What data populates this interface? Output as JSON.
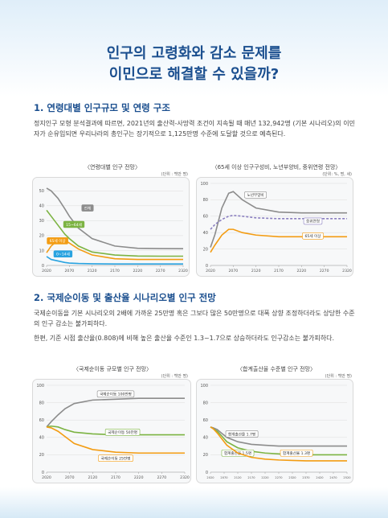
{
  "header": {
    "title_lines": [
      "인구의 고령화와 감소 문제를",
      "이민으로 해결할 수 있을까?"
    ]
  },
  "sections": [
    {
      "heading": "1. 연령대별 인구규모 및 연령 구조",
      "paragraphs": [
        "정지인구 모형 분석결과에 따르면, 2021년의 출산력-사망력 조건이 지속될 때 매년 132,942명 (기본 시나리오)의 이민자가 순유입되면 우리나라의 총인구는 장기적으로 1,125만명 수준에 도달할 것으로 예측된다."
      ]
    },
    {
      "heading": "2. 국제순이동 및 출산율 시나리오별 인구 전망",
      "paragraphs": [
        "국제순이동을 기본 시나리오의 2배에 가까운 25만명 혹은 그보다 많은 50만명으로 대폭 상향 조정하더라도 상당한 수준의 인구 감소는 불가피하다.",
        "한편, 기준 시점 출산율(0.808)에 비해 높은 출산율 수준인 1.3~1.7으로 상승하더라도 인구감소는 불가피하다."
      ]
    }
  ],
  "chart_data": [
    {
      "type": "line",
      "title": "〈연령대별 인구 전망〉",
      "unit": "(단위 : 백만 명)",
      "x": [
        2020,
        2030,
        2045,
        2060,
        2070,
        2090,
        2120,
        2170,
        2220,
        2270,
        2320
      ],
      "xlim": [
        2020,
        2320
      ],
      "xticks": [
        2020,
        2070,
        2120,
        2170,
        2220,
        2270,
        2320
      ],
      "ylim": [
        0,
        55
      ],
      "yticks": [
        0,
        10,
        20,
        30,
        40,
        50
      ],
      "grid": true,
      "series": [
        {
          "name": "전체",
          "color": "#8c8c8c",
          "values": [
            51.8,
            50,
            45,
            38,
            33,
            25,
            18,
            13,
            11.5,
            11.3,
            11.2
          ]
        },
        {
          "name": "15~64세",
          "color": "#7cb342",
          "values": [
            37,
            33,
            27,
            21,
            18,
            13,
            9,
            7,
            6.3,
            6.2,
            6.2
          ]
        },
        {
          "name": "65세 이상",
          "color": "#f39c12",
          "values": [
            8.5,
            13,
            17,
            17,
            15,
            11,
            7,
            4.5,
            4,
            4,
            4
          ]
        },
        {
          "name": "0~14세",
          "color": "#29a3e0",
          "values": [
            6,
            4,
            3,
            2,
            1.6,
            1.3,
            1.1,
            1,
            1,
            1,
            1
          ]
        }
      ]
    },
    {
      "type": "line",
      "title": "〈65세 이상 인구구성비, 노년부양비, 중위연령 전망〉",
      "unit": "(단위: %, 명, 세)",
      "x": [
        2020,
        2030,
        2045,
        2060,
        2070,
        2090,
        2120,
        2170,
        2220,
        2270,
        2320
      ],
      "xlim": [
        2020,
        2320
      ],
      "xticks": [
        2020,
        2070,
        2120,
        2170,
        2220,
        2270,
        2320
      ],
      "ylim": [
        0,
        100
      ],
      "yticks": [
        0,
        20,
        40,
        60,
        80,
        100
      ],
      "grid": true,
      "series": [
        {
          "name": "노년부양비",
          "color": "#8c8c8c",
          "values": [
            22,
            38,
            70,
            88,
            90,
            80,
            70,
            65,
            64,
            64,
            64
          ]
        },
        {
          "name": "중위연령",
          "color": "#8a7fc0",
          "line_style": "dashed",
          "values": [
            44,
            50,
            56,
            60,
            61,
            60,
            58,
            57,
            57,
            57,
            57
          ]
        },
        {
          "name": "65세 이상",
          "color": "#f39c12",
          "values": [
            16,
            25,
            37,
            44,
            44,
            40,
            37,
            35,
            35,
            35,
            35
          ]
        }
      ]
    },
    {
      "type": "line",
      "title": "〈국제순이동 규모별 인구 전망〉",
      "unit": "(단위 : 백만 명)",
      "x": [
        2020,
        2030,
        2045,
        2060,
        2080,
        2120,
        2170,
        2220,
        2270,
        2320
      ],
      "xlim": [
        2020,
        2320
      ],
      "xticks": [
        2020,
        2070,
        2120,
        2170,
        2220,
        2270,
        2320
      ],
      "ylim": [
        0,
        100
      ],
      "yticks": [
        0,
        20,
        40,
        60,
        80,
        100
      ],
      "grid": true,
      "series": [
        {
          "name": "국제순이동 100만명",
          "color": "#8c8c8c",
          "values": [
            52,
            58,
            66,
            73,
            79,
            83,
            84,
            85,
            85,
            85
          ]
        },
        {
          "name": "국제순이동 50만명",
          "color": "#7cb342",
          "values": [
            52,
            53,
            52,
            49,
            46,
            44,
            43,
            43,
            43,
            43
          ]
        },
        {
          "name": "국제순이동 25만명",
          "color": "#f39c12",
          "values": [
            52,
            51,
            47,
            41,
            33,
            26,
            23,
            22,
            22,
            22
          ]
        }
      ]
    },
    {
      "type": "line",
      "title": "〈합계출산율 수준별 인구 전망〉",
      "unit": "(단위 : 백만 명)",
      "x": [
        2020,
        2030,
        2045,
        2060,
        2080,
        2120,
        2170,
        2220,
        2270,
        2320,
        2370,
        2420,
        2470,
        2520
      ],
      "xlim": [
        2020,
        2520
      ],
      "xticks": [
        2020,
        2070,
        2120,
        2170,
        2220,
        2270,
        2320,
        2370,
        2420,
        2470,
        2520
      ],
      "ylim": [
        0,
        100
      ],
      "yticks": [
        0,
        20,
        40,
        60,
        80,
        100
      ],
      "grid": true,
      "series": [
        {
          "name": "합계출산율 1.7명",
          "color": "#8c8c8c",
          "values": [
            52,
            51,
            49,
            45,
            40,
            35,
            32,
            31,
            30,
            30,
            30,
            30,
            30,
            30
          ]
        },
        {
          "name": "합계출산율 1.5명",
          "color": "#7cb342",
          "values": [
            52,
            50,
            47,
            42,
            35,
            28,
            24,
            22,
            21,
            20,
            20,
            20,
            20,
            20
          ]
        },
        {
          "name": "합계출산율 1.3명",
          "color": "#f39c12",
          "values": [
            52,
            50,
            45,
            39,
            31,
            22,
            17,
            15,
            14,
            13.5,
            13,
            13,
            13,
            13
          ]
        }
      ]
    }
  ]
}
